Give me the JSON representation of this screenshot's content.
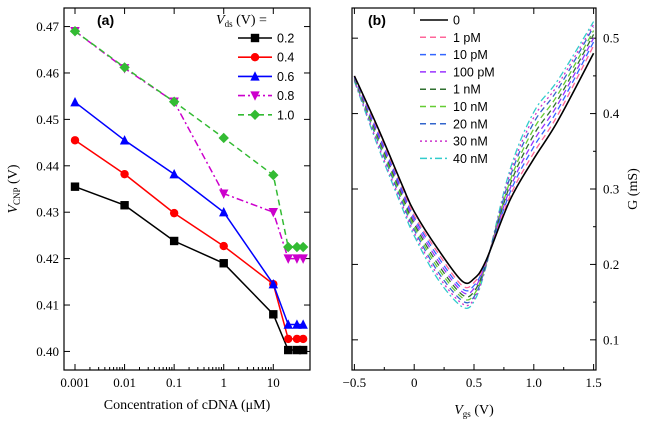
{
  "chart_data": [
    {
      "type": "line",
      "panel_label": "(a)",
      "xscale": "log",
      "x": [
        0.001,
        0.01,
        0.1,
        1,
        10,
        20,
        30,
        40
      ],
      "xticks": [
        0.001,
        0.01,
        0.1,
        1,
        10
      ],
      "xtick_labels": [
        "0.001",
        "0.01",
        "0.1",
        "1",
        "10"
      ],
      "xlabel": "Concentration of cDNA (μM)",
      "ylabel_main": "V",
      "ylabel_sub": "CNP",
      "ylabel_unit": " (V)",
      "ylim": [
        0.396,
        0.474
      ],
      "yticks": [
        0.4,
        0.41,
        0.42,
        0.43,
        0.44,
        0.45,
        0.46,
        0.47
      ],
      "ytick_labels": [
        "0.40",
        "0.41",
        "0.42",
        "0.43",
        "0.44",
        "0.45",
        "0.46",
        "0.47"
      ],
      "legend_title_main": "V",
      "legend_title_sub": "ds",
      "legend_title_rest": " (V) =",
      "legend_position": "top-right",
      "series": [
        {
          "name": "0.2",
          "color": "#000000",
          "marker": "square",
          "dash": "solid",
          "values": [
            0.4355,
            0.4315,
            0.4238,
            0.419,
            0.408,
            0.4003,
            0.4003,
            0.4003
          ]
        },
        {
          "name": "0.4",
          "color": "#ff0000",
          "marker": "circle",
          "dash": "solid",
          "values": [
            0.4455,
            0.4382,
            0.4298,
            0.4227,
            0.4145,
            0.4027,
            0.4027,
            0.4027
          ]
        },
        {
          "name": "0.6",
          "color": "#0000ff",
          "marker": "triangle-up",
          "dash": "solid",
          "values": [
            0.4537,
            0.4455,
            0.4382,
            0.43,
            0.4145,
            0.4058,
            0.4058,
            0.4058
          ]
        },
        {
          "name": "0.8",
          "color": "#cc00cc",
          "marker": "triangle-down",
          "dash": "dashdot",
          "values": [
            0.469,
            0.461,
            0.4538,
            0.434,
            0.43,
            0.42,
            0.42,
            0.42
          ]
        },
        {
          "name": "1.0",
          "color": "#33bb33",
          "marker": "diamond",
          "dash": "dash",
          "values": [
            0.469,
            0.4612,
            0.4538,
            0.446,
            0.438,
            0.4225,
            0.4225,
            0.4225
          ]
        }
      ]
    },
    {
      "type": "line",
      "panel_label": "(b)",
      "xlim": [
        -0.5,
        1.5
      ],
      "xticks": [
        -0.5,
        0,
        0.5,
        1.0,
        1.5
      ],
      "xtick_labels": [
        "−0.5",
        "0",
        "0.5",
        "1.0",
        "1.5"
      ],
      "xlabel_main": "V",
      "xlabel_sub": "gs",
      "xlabel_unit": " (V)",
      "ylabel": "G (mS)",
      "ylim": [
        0.06,
        0.54
      ],
      "yticks": [
        0.1,
        0.2,
        0.3,
        0.4,
        0.5
      ],
      "ytick_labels": [
        "0.1",
        "0.2",
        "0.3",
        "0.4",
        "0.5"
      ],
      "y_axis_side": "right",
      "legend_position": "top-left",
      "series": [
        {
          "name": "0",
          "color": "#000000",
          "dash": "solid",
          "x": [
            -0.5,
            -0.3,
            -0.1,
            0.0,
            0.2,
            0.4,
            0.5,
            0.6,
            0.8,
            1.0,
            1.2,
            1.5
          ],
          "y": [
            0.45,
            0.38,
            0.305,
            0.27,
            0.22,
            0.178,
            0.181,
            0.205,
            0.285,
            0.34,
            0.39,
            0.48
          ]
        },
        {
          "name": "1 pM",
          "color": "#ff6699",
          "dash": "dash",
          "x": [
            -0.5,
            -0.3,
            -0.1,
            0.0,
            0.2,
            0.4,
            0.5,
            0.6,
            0.8,
            1.0,
            1.2,
            1.5
          ],
          "y": [
            0.45,
            0.377,
            0.302,
            0.265,
            0.215,
            0.172,
            0.176,
            0.204,
            0.29,
            0.348,
            0.398,
            0.49
          ]
        },
        {
          "name": "10 pM",
          "color": "#3366ff",
          "dash": "dash",
          "x": [
            -0.5,
            -0.3,
            -0.1,
            0.0,
            0.2,
            0.4,
            0.5,
            0.6,
            0.8,
            1.0,
            1.2,
            1.5
          ],
          "y": [
            0.449,
            0.374,
            0.298,
            0.262,
            0.21,
            0.168,
            0.172,
            0.203,
            0.295,
            0.356,
            0.405,
            0.495
          ]
        },
        {
          "name": "100 pM",
          "color": "#9933ff",
          "dash": "dash",
          "x": [
            -0.5,
            -0.3,
            -0.1,
            0.0,
            0.2,
            0.4,
            0.5,
            0.6,
            0.8,
            1.0,
            1.2,
            1.5
          ],
          "y": [
            0.448,
            0.371,
            0.295,
            0.258,
            0.205,
            0.164,
            0.168,
            0.202,
            0.3,
            0.364,
            0.412,
            0.5
          ]
        },
        {
          "name": "1 nM",
          "color": "#2f6f2f",
          "dash": "dash",
          "x": [
            -0.5,
            -0.3,
            -0.1,
            0.0,
            0.2,
            0.4,
            0.5,
            0.6,
            0.8,
            1.0,
            1.2,
            1.5
          ],
          "y": [
            0.447,
            0.368,
            0.291,
            0.254,
            0.2,
            0.16,
            0.164,
            0.201,
            0.305,
            0.372,
            0.418,
            0.505
          ]
        },
        {
          "name": "10 nM",
          "color": "#66cc33",
          "dash": "dash",
          "x": [
            -0.5,
            -0.3,
            -0.1,
            0.0,
            0.2,
            0.4,
            0.5,
            0.6,
            0.8,
            1.0,
            1.2,
            1.5
          ],
          "y": [
            0.446,
            0.365,
            0.287,
            0.25,
            0.195,
            0.156,
            0.16,
            0.2,
            0.31,
            0.38,
            0.425,
            0.51
          ]
        },
        {
          "name": "20 nM",
          "color": "#3366cc",
          "dash": "dash",
          "x": [
            -0.5,
            -0.3,
            -0.1,
            0.0,
            0.2,
            0.4,
            0.5,
            0.6,
            0.8,
            1.0,
            1.2,
            1.5
          ],
          "y": [
            0.445,
            0.362,
            0.283,
            0.246,
            0.19,
            0.152,
            0.157,
            0.199,
            0.315,
            0.388,
            0.432,
            0.515
          ]
        },
        {
          "name": "30 nM",
          "color": "#cc33cc",
          "dash": "dot",
          "x": [
            -0.5,
            -0.3,
            -0.1,
            0.0,
            0.2,
            0.4,
            0.5,
            0.6,
            0.8,
            1.0,
            1.2,
            1.5
          ],
          "y": [
            0.444,
            0.358,
            0.279,
            0.242,
            0.185,
            0.148,
            0.154,
            0.198,
            0.32,
            0.395,
            0.438,
            0.518
          ]
        },
        {
          "name": "40 nM",
          "color": "#33cccc",
          "dash": "dashdot",
          "x": [
            -0.5,
            -0.3,
            -0.1,
            0.0,
            0.2,
            0.4,
            0.5,
            0.6,
            0.8,
            1.0,
            1.2,
            1.5
          ],
          "y": [
            0.443,
            0.355,
            0.275,
            0.238,
            0.18,
            0.144,
            0.151,
            0.197,
            0.325,
            0.402,
            0.444,
            0.522
          ]
        }
      ]
    }
  ]
}
